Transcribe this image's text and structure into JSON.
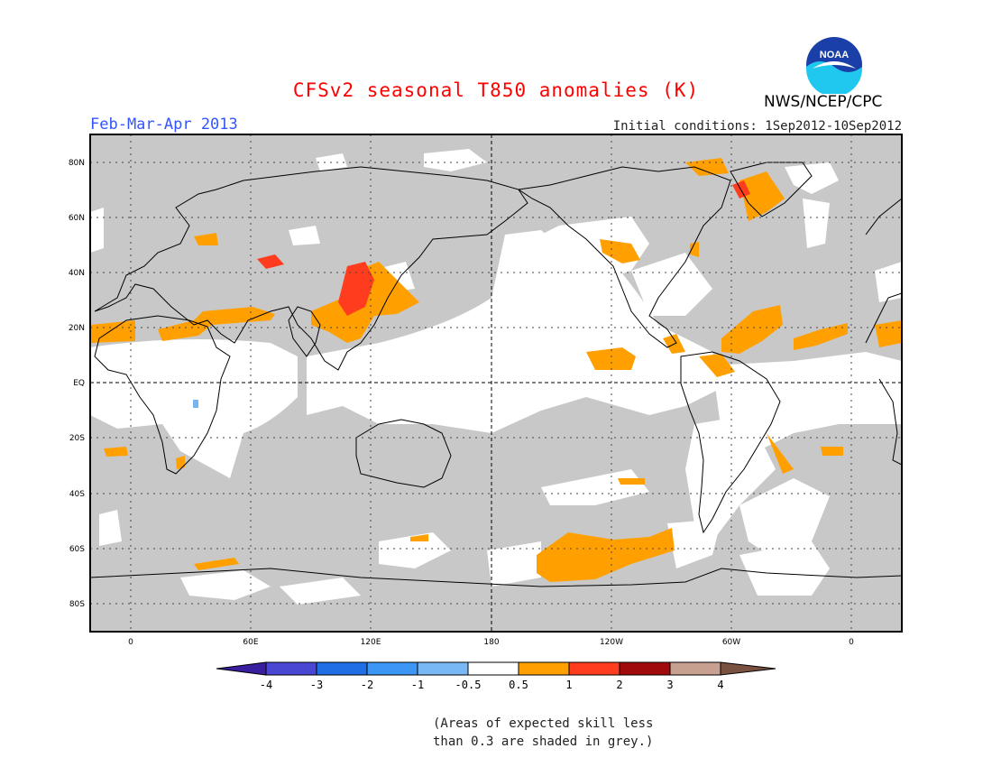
{
  "header": {
    "title": "CFSv2 seasonal T850 anomalies (K)",
    "season": "Feb-Mar-Apr 2013",
    "initial_conditions": "Initial conditions: 1Sep2012-10Sep2012",
    "agency": "NWS/NCEP/CPC",
    "logo_text": "NOAA"
  },
  "colors": {
    "title": "#ff0000",
    "season": "#3355ff",
    "grey_low_skill": "#c8c8c8",
    "anom_0_5_1": "#ffa000",
    "anom_1_2": "#ff3c1e",
    "anom_neg_1_0_5": "#78b4f0"
  },
  "map": {
    "lat_labels": [
      "80N",
      "60N",
      "40N",
      "20N",
      "EQ",
      "20S",
      "40S",
      "60S",
      "80S"
    ],
    "lon_labels": [
      "0",
      "60E",
      "120E",
      "180",
      "120W",
      "60W",
      "0"
    ]
  },
  "colorbar": {
    "labels": [
      "-4",
      "-3",
      "-2",
      "-1",
      "-0.5",
      "0.5",
      "1",
      "2",
      "3",
      "4"
    ],
    "colors": [
      "#3a1ea0",
      "#4846d2",
      "#1e6ee6",
      "#3c96f5",
      "#78b9f5",
      "#ffffff",
      "#ffa000",
      "#ff3c1e",
      "#a00a0a",
      "#c8a090",
      "#7a5040"
    ]
  },
  "note": {
    "line1": "(Areas of expected skill less",
    "line2": "than 0.3 are shaded in grey.)"
  }
}
